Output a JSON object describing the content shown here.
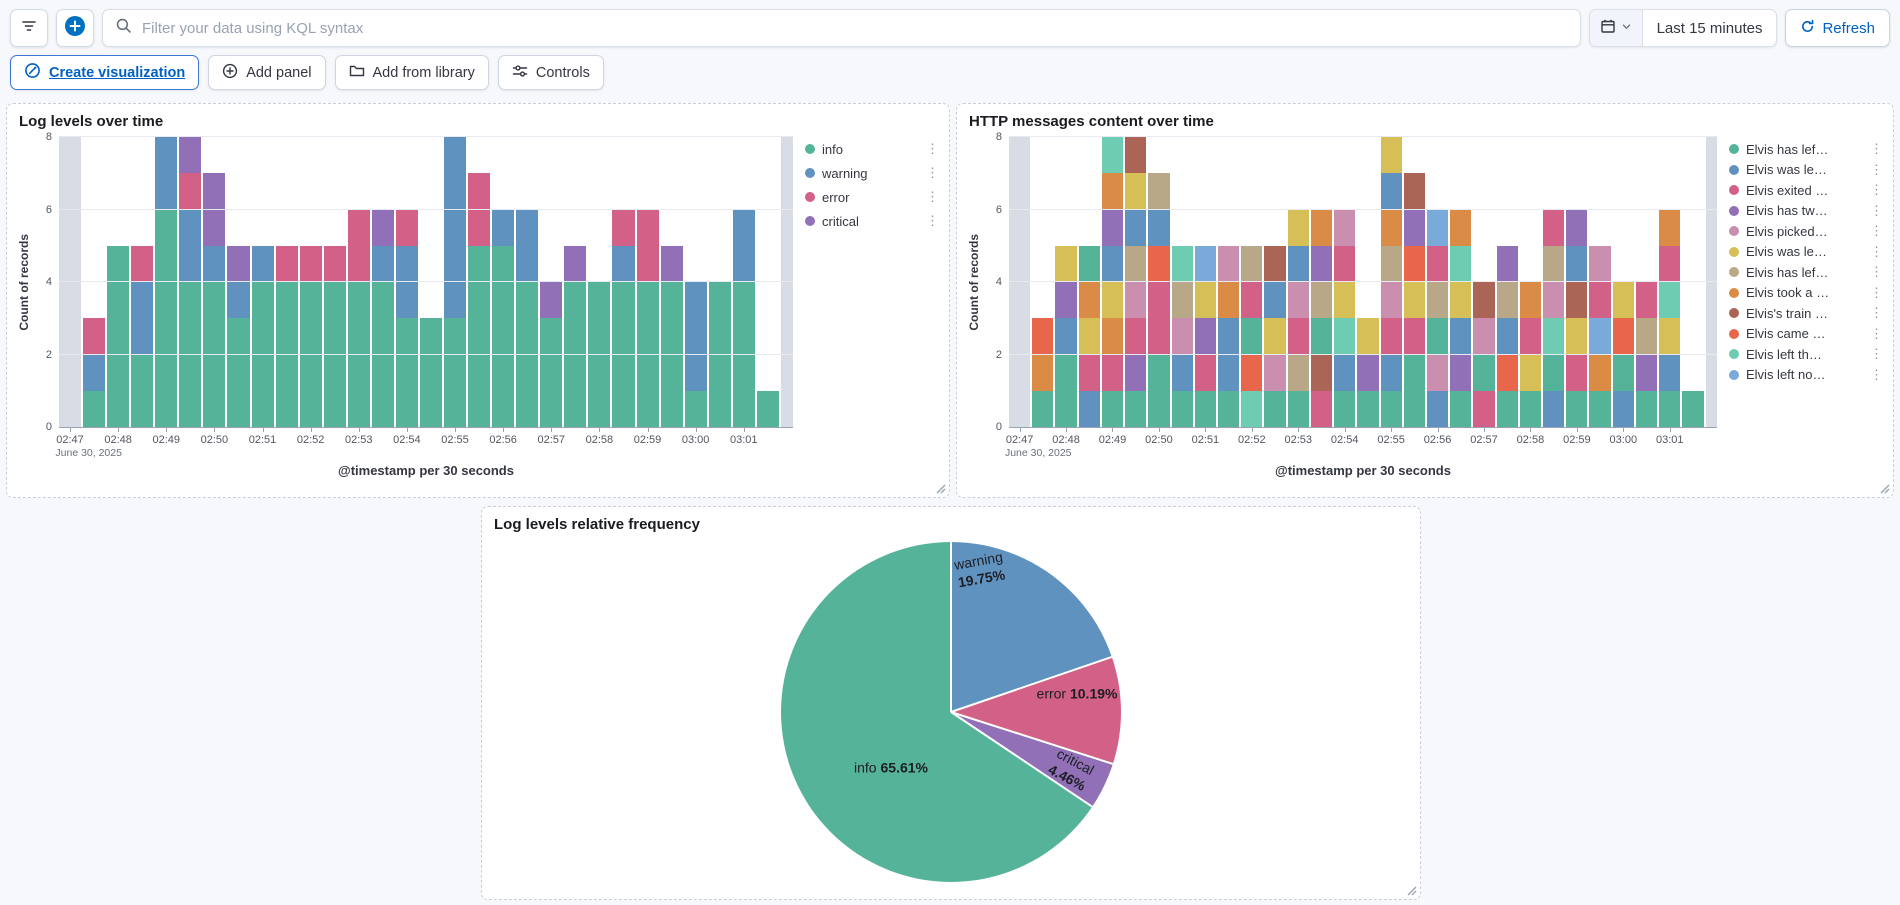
{
  "topbar": {
    "search_placeholder": "Filter your data using KQL syntax",
    "time_range_label": "Last 15 minutes",
    "refresh_label": "Refresh"
  },
  "toolbar": {
    "create_visualization_label": "Create visualization",
    "add_panel_label": "Add panel",
    "add_from_library_label": "Add from library",
    "controls_label": "Controls"
  },
  "colors": {
    "accent_blue": "#0061C5",
    "partial_bucket": "#D8DCE5",
    "axis_line": "#98A2B3",
    "gridline": "#E7EBF1",
    "info_green": "#54B399",
    "warning_blue": "#6092C0",
    "error_pink": "#D36086",
    "critical_purple": "#9170B8"
  },
  "chart_data": [
    {
      "type": "bar",
      "stacked": true,
      "title": "Log levels over time",
      "xlabel": "@timestamp per 30 seconds",
      "ylabel": "Count of records",
      "ylim": [
        0,
        8
      ],
      "yticks": [
        0,
        2,
        4,
        6,
        8
      ],
      "x_tick_labels": [
        "02:47",
        "02:48",
        "02:49",
        "02:50",
        "02:51",
        "02:52",
        "02:53",
        "02:54",
        "02:55",
        "02:56",
        "02:57",
        "02:58",
        "02:59",
        "03:00",
        "03:01"
      ],
      "x_sub_label": "June 30, 2025",
      "legend_position": "right",
      "series_names": [
        "info",
        "warning",
        "error",
        "critical"
      ],
      "series_colors": [
        "#54B399",
        "#6092C0",
        "#D36086",
        "#9170B8"
      ],
      "bars": [
        {
          "partial": true,
          "total": 8
        },
        {
          "segments": [
            1,
            1,
            1,
            0
          ]
        },
        {
          "segments": [
            5,
            0,
            0,
            0
          ]
        },
        {
          "segments": [
            2,
            2,
            1,
            0
          ]
        },
        {
          "segments": [
            6,
            2,
            0,
            0
          ]
        },
        {
          "segments": [
            4,
            2,
            1,
            1
          ]
        },
        {
          "segments": [
            4,
            1,
            0,
            2
          ]
        },
        {
          "segments": [
            3,
            1,
            0,
            1
          ]
        },
        {
          "segments": [
            4,
            1,
            0,
            0
          ]
        },
        {
          "segments": [
            4,
            0,
            1,
            0
          ]
        },
        {
          "segments": [
            4,
            0,
            1,
            0
          ]
        },
        {
          "segments": [
            4,
            0,
            1,
            0
          ]
        },
        {
          "segments": [
            4,
            0,
            2,
            0
          ]
        },
        {
          "segments": [
            4,
            1,
            0,
            1
          ]
        },
        {
          "segments": [
            3,
            2,
            1,
            0
          ]
        },
        {
          "segments": [
            3,
            0,
            0,
            0
          ]
        },
        {
          "segments": [
            3,
            5,
            0,
            0
          ]
        },
        {
          "segments": [
            5,
            0,
            2,
            0
          ]
        },
        {
          "segments": [
            5,
            1,
            0,
            0
          ]
        },
        {
          "segments": [
            4,
            2,
            0,
            0
          ]
        },
        {
          "segments": [
            3,
            0,
            0,
            1
          ]
        },
        {
          "segments": [
            4,
            0,
            0,
            1
          ]
        },
        {
          "segments": [
            4,
            0,
            0,
            0
          ]
        },
        {
          "segments": [
            4,
            1,
            1,
            0
          ]
        },
        {
          "segments": [
            4,
            0,
            2,
            0
          ]
        },
        {
          "segments": [
            4,
            0,
            0,
            1
          ]
        },
        {
          "segments": [
            1,
            3,
            0,
            0
          ]
        },
        {
          "segments": [
            4,
            0,
            0,
            0
          ]
        },
        {
          "segments": [
            4,
            2,
            0,
            0
          ]
        },
        {
          "segments": [
            1,
            0,
            0,
            0
          ]
        },
        {
          "partial": true,
          "total": 8,
          "clip": true
        }
      ]
    },
    {
      "type": "bar",
      "stacked": true,
      "title": "HTTP messages content over time",
      "xlabel": "@timestamp per 30 seconds",
      "ylabel": "Count of records",
      "ylim": [
        0,
        8
      ],
      "yticks": [
        0,
        2,
        4,
        6,
        8
      ],
      "x_tick_labels": [
        "02:47",
        "02:48",
        "02:49",
        "02:50",
        "02:51",
        "02:52",
        "02:53",
        "02:54",
        "02:55",
        "02:56",
        "02:57",
        "02:58",
        "02:59",
        "03:00",
        "03:01"
      ],
      "x_sub_label": "June 30, 2025",
      "legend_position": "right",
      "series_names": [
        "Elvis has lef…",
        "Elvis was le…",
        "Elvis exited …",
        "Elvis has tw…",
        "Elvis picked…",
        "Elvis was le…",
        "Elvis has lef…",
        "Elvis took a …",
        "Elvis's train …",
        "Elvis came …",
        "Elvis left th…",
        "Elvis left no…"
      ],
      "series_colors": [
        "#54B399",
        "#6092C0",
        "#D36086",
        "#9170B8",
        "#CA8EAE",
        "#D6BF57",
        "#B9A888",
        "#DA8B45",
        "#AA6556",
        "#E7664C",
        "#6DCCB1",
        "#79AAD9"
      ],
      "bars": [
        {
          "partial": true,
          "total": 8
        },
        {
          "stack": [
            0,
            7,
            9
          ]
        },
        {
          "stack": [
            0,
            0,
            1,
            3,
            5
          ]
        },
        {
          "stack": [
            1,
            2,
            5,
            7,
            0
          ]
        },
        {
          "stack": [
            0,
            2,
            7,
            5,
            1,
            3,
            7,
            10
          ]
        },
        {
          "stack": [
            0,
            3,
            2,
            4,
            6,
            1,
            5,
            8
          ]
        },
        {
          "stack": [
            0,
            0,
            2,
            2,
            9,
            1,
            6
          ]
        },
        {
          "stack": [
            0,
            1,
            4,
            6,
            10
          ]
        },
        {
          "stack": [
            0,
            2,
            3,
            5,
            11
          ]
        },
        {
          "stack": [
            0,
            1,
            1,
            7,
            4
          ]
        },
        {
          "stack": [
            10,
            9,
            0,
            2,
            6
          ]
        },
        {
          "stack": [
            0,
            4,
            5,
            1,
            8
          ]
        },
        {
          "stack": [
            0,
            6,
            2,
            4,
            1,
            5
          ]
        },
        {
          "stack": [
            2,
            8,
            0,
            6,
            3,
            7
          ]
        },
        {
          "stack": [
            0,
            1,
            10,
            5,
            2,
            4
          ]
        },
        {
          "stack": [
            0,
            3,
            5
          ]
        },
        {
          "stack": [
            0,
            1,
            2,
            4,
            6,
            7,
            1,
            5
          ]
        },
        {
          "stack": [
            0,
            0,
            2,
            5,
            9,
            3,
            8
          ]
        },
        {
          "stack": [
            1,
            4,
            0,
            6,
            2,
            11
          ]
        },
        {
          "stack": [
            0,
            3,
            1,
            5,
            10,
            7
          ]
        },
        {
          "stack": [
            2,
            0,
            4,
            8
          ]
        },
        {
          "stack": [
            0,
            9,
            1,
            6,
            3
          ]
        },
        {
          "stack": [
            0,
            5,
            2,
            7
          ]
        },
        {
          "stack": [
            1,
            0,
            10,
            4,
            6,
            2
          ]
        },
        {
          "stack": [
            0,
            2,
            5,
            8,
            1,
            3
          ]
        },
        {
          "stack": [
            0,
            7,
            11,
            2,
            4
          ]
        },
        {
          "stack": [
            1,
            0,
            9,
            5
          ]
        },
        {
          "stack": [
            0,
            3,
            6,
            2
          ]
        },
        {
          "stack": [
            0,
            1,
            5,
            10,
            2,
            7
          ]
        },
        {
          "stack": [
            0
          ]
        },
        {
          "partial": true,
          "total": 8,
          "clip": true
        }
      ]
    },
    {
      "type": "pie",
      "title": "Log levels relative frequency",
      "start_angle": "top",
      "direction": "clockwise",
      "slices": [
        {
          "name": "warning",
          "value_pct": 19.75,
          "label_pct": "19.75%",
          "color": "#6092C0"
        },
        {
          "name": "error",
          "value_pct": 10.19,
          "label_pct": "10.19%",
          "color": "#D36086"
        },
        {
          "name": "critical",
          "value_pct": 4.46,
          "label_pct": "4.46%",
          "color": "#9170B8"
        },
        {
          "name": "info",
          "value_pct": 65.61,
          "label_pct": "65.61%",
          "color": "#54B399"
        }
      ]
    }
  ]
}
